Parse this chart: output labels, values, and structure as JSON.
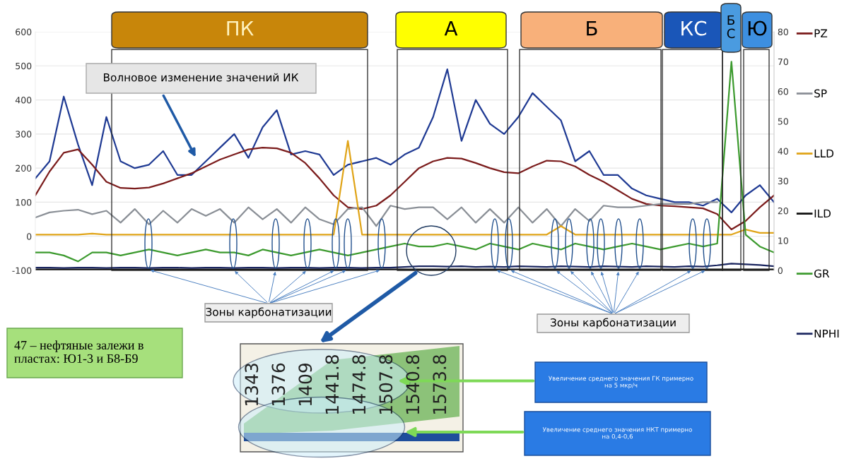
{
  "chart_data": {
    "type": "line",
    "categories": [
      null,
      null,
      null,
      null,
      null,
      null,
      null,
      null,
      null,
      null,
      null,
      null,
      null,
      null,
      null,
      null,
      null,
      null,
      null,
      null,
      null,
      null,
      null,
      null,
      null,
      null,
      null,
      null,
      null,
      null,
      null,
      null,
      null,
      null,
      null,
      null,
      null,
      null,
      null,
      null,
      null,
      null,
      null,
      null,
      null,
      null,
      null,
      null,
      null,
      null,
      null,
      null,
      null
    ],
    "series": [
      {
        "color": "#1f3a93",
        "values": [
          170,
          220,
          410,
          270,
          150,
          350,
          220,
          200,
          210,
          250,
          180,
          180,
          220,
          260,
          300,
          230,
          320,
          370,
          240,
          250,
          240,
          180,
          210,
          220,
          230,
          210,
          240,
          260,
          350,
          490,
          280,
          400,
          330,
          300,
          350,
          420,
          380,
          340,
          220,
          250,
          180,
          180,
          140,
          120,
          110,
          100,
          100,
          90,
          110,
          70,
          120,
          150,
          100
        ]
      },
      {
        "name": "PZ",
        "color": "#7b1c1c",
        "values": [
          120,
          190,
          245,
          255,
          210,
          160,
          142,
          140,
          143,
          155,
          170,
          185,
          205,
          225,
          240,
          255,
          260,
          258,
          245,
          215,
          170,
          120,
          85,
          80,
          90,
          120,
          160,
          200,
          220,
          230,
          228,
          215,
          200,
          188,
          185,
          205,
          222,
          220,
          205,
          180,
          160,
          135,
          110,
          95,
          90,
          88,
          85,
          82,
          65,
          20,
          45,
          85,
          120
        ]
      },
      {
        "name": "SP",
        "color": "#8a8f96",
        "values": [
          55,
          70,
          75,
          78,
          65,
          75,
          40,
          80,
          35,
          75,
          40,
          80,
          60,
          80,
          40,
          85,
          50,
          80,
          40,
          85,
          50,
          35,
          80,
          85,
          30,
          90,
          80,
          85,
          85,
          50,
          85,
          40,
          80,
          40,
          85,
          40,
          80,
          30,
          80,
          45,
          90,
          85,
          85,
          90,
          95,
          95,
          95,
          100,
          100,
          null,
          null,
          null,
          null
        ]
      },
      {
        "name": "LLD",
        "color": "#e0a418",
        "values": [
          5,
          5,
          5,
          5,
          8,
          5,
          5,
          5,
          5,
          5,
          5,
          5,
          5,
          5,
          5,
          5,
          5,
          5,
          5,
          5,
          5,
          5,
          280,
          5,
          5,
          5,
          5,
          5,
          5,
          5,
          5,
          5,
          5,
          5,
          5,
          5,
          5,
          30,
          5,
          5,
          5,
          5,
          5,
          5,
          5,
          5,
          5,
          5,
          5,
          5,
          20,
          10,
          10
        ]
      },
      {
        "name": "ILD",
        "color": "#111111",
        "values": [
          -97,
          -97,
          -97,
          -97,
          -97,
          -97,
          -97,
          -97,
          -97,
          -97,
          -97,
          -97,
          -97,
          -97,
          -97,
          -97,
          -97,
          -97,
          -97,
          -97,
          -97,
          -97,
          -97,
          -97,
          -97,
          -97,
          -97,
          -97,
          -97,
          -97,
          -97,
          -97,
          -97,
          -97,
          -97,
          -97,
          -97,
          -97,
          -97,
          -97,
          -97,
          -97,
          -97,
          -97,
          -97,
          -97,
          -97,
          -97,
          -97,
          -97,
          -97,
          -97,
          -97
        ]
      },
      {
        "name": "GR",
        "color": "#3c9a2e",
        "axis": "y2",
        "values": [
          6,
          6,
          5,
          3,
          6,
          6,
          5,
          6,
          7,
          6,
          5,
          6,
          7,
          6,
          6,
          5,
          7,
          6,
          5,
          6,
          7,
          6,
          5,
          6,
          7,
          8,
          9,
          8,
          8,
          9,
          8,
          7,
          9,
          8,
          7,
          9,
          8,
          7,
          9,
          8,
          7,
          8,
          9,
          8,
          7,
          8,
          9,
          8,
          9,
          70,
          12,
          8,
          6
        ]
      },
      {
        "name": "NPHI",
        "color": "#1b2660",
        "values": [
          -92,
          -92,
          -93,
          -92,
          -92,
          -93,
          -92,
          -92,
          -93,
          -92,
          -92,
          -93,
          -92,
          -92,
          -93,
          -92,
          -92,
          -93,
          -92,
          -92,
          -93,
          -92,
          -92,
          -93,
          -92,
          -92,
          -90,
          -88,
          -88,
          -89,
          -88,
          -90,
          -89,
          -90,
          -88,
          -89,
          -90,
          -88,
          -89,
          -90,
          -88,
          -89,
          -90,
          -88,
          -89,
          -90,
          -88,
          -89,
          -85,
          -80,
          -82,
          -84,
          -88
        ]
      }
    ],
    "ylim": [
      -100,
      600
    ],
    "yticks": [
      -100,
      0,
      100,
      200,
      300,
      400,
      500,
      600
    ],
    "y2lim": [
      0,
      80
    ],
    "y2ticks": [
      0,
      10,
      20,
      30,
      40,
      50,
      60,
      70,
      80
    ],
    "grid": "y",
    "legend": "right",
    "annotations": [
      "ПК",
      "А",
      "Б",
      "КС",
      "Б\nС",
      "Ю",
      "Волновое изменение значений ИК",
      "Зоны карбонатизации",
      "Зоны карбонатизации",
      "47 – нефтяные залежи в\nпластах: Ю1-3 и Б8-Б9",
      "Увеличение среднего значения ГК примерно\nна 5 мкр/ч",
      "Увеличение среднего значения НКТ примерно\nна 0,4-0,6",
      "1343",
      "1376",
      "1409",
      "1441.8",
      "1474.8",
      "1507.8",
      "1540.8",
      "1573.8"
    ]
  }
}
